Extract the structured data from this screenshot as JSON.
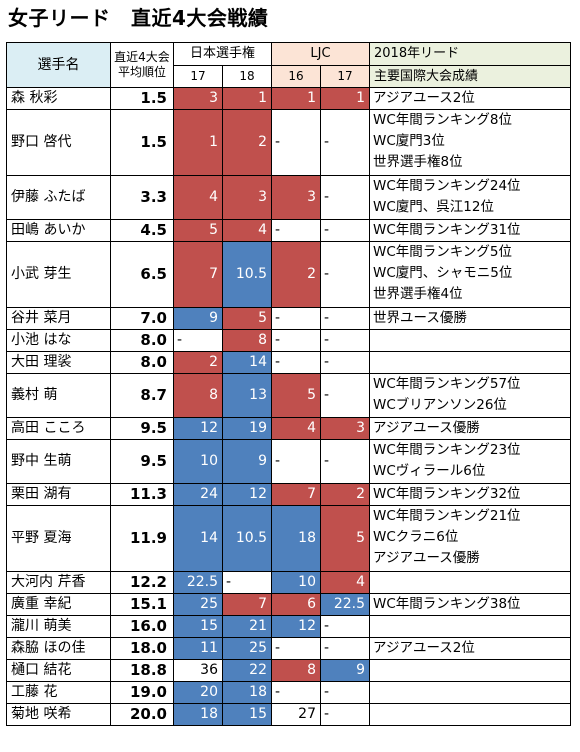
{
  "title": "女子リード　直近4大会戦績",
  "headers": {
    "name": "選手名",
    "avg_line1": "直近4大会",
    "avg_line2": "平均順位",
    "japan": "日本選手権",
    "ljc": "LJC",
    "result_line1": "2018年リード",
    "result_line2": "主要国際大会成績",
    "years": [
      "17",
      "18",
      "16",
      "17"
    ]
  },
  "colors": {
    "red": "#c0504d",
    "blue": "#4f81bd",
    "header_blue": "#dbeef4",
    "header_orange": "#fce4d6",
    "header_green": "#ebf1de"
  },
  "rows": [
    {
      "name": "森 秋彩",
      "avg": "1.5",
      "ranks": [
        {
          "v": "3",
          "c": "red"
        },
        {
          "v": "1",
          "c": "red"
        },
        {
          "v": "1",
          "c": "red"
        },
        {
          "v": "1",
          "c": "red"
        }
      ],
      "results": [
        "アジアユース2位"
      ]
    },
    {
      "name": "野口 啓代",
      "avg": "1.5",
      "ranks": [
        {
          "v": "1",
          "c": "red"
        },
        {
          "v": "2",
          "c": "red"
        },
        {
          "v": "-",
          "c": "dash"
        },
        {
          "v": "-",
          "c": "dash"
        }
      ],
      "results": [
        "WC年間ランキング8位",
        "WC廈門3位",
        "世界選手権8位"
      ]
    },
    {
      "name": "伊藤 ふたば",
      "avg": "3.3",
      "ranks": [
        {
          "v": "4",
          "c": "red"
        },
        {
          "v": "3",
          "c": "red"
        },
        {
          "v": "3",
          "c": "red"
        },
        {
          "v": "-",
          "c": "dash"
        }
      ],
      "results": [
        "WC年間ランキング24位",
        "WC廈門、呉江12位"
      ]
    },
    {
      "name": "田嶋 あいか",
      "avg": "4.5",
      "ranks": [
        {
          "v": "5",
          "c": "red"
        },
        {
          "v": "4",
          "c": "red"
        },
        {
          "v": "-",
          "c": "dash"
        },
        {
          "v": "-",
          "c": "dash"
        }
      ],
      "results": [
        "WC年間ランキング31位"
      ]
    },
    {
      "name": "小武 芽生",
      "avg": "6.5",
      "ranks": [
        {
          "v": "7",
          "c": "red"
        },
        {
          "v": "10.5",
          "c": "blue"
        },
        {
          "v": "2",
          "c": "red"
        },
        {
          "v": "-",
          "c": "dash"
        }
      ],
      "results": [
        "WC年間ランキング5位",
        "WC廈門、シャモニ5位",
        "世界選手権4位"
      ]
    },
    {
      "name": "谷井 菜月",
      "avg": "7.0",
      "ranks": [
        {
          "v": "9",
          "c": "blue"
        },
        {
          "v": "5",
          "c": "red"
        },
        {
          "v": "-",
          "c": "dash"
        },
        {
          "v": "-",
          "c": "dash"
        }
      ],
      "results": [
        "世界ユース優勝"
      ]
    },
    {
      "name": "小池 はな",
      "avg": "8.0",
      "ranks": [
        {
          "v": "-",
          "c": "dash"
        },
        {
          "v": "8",
          "c": "red"
        },
        {
          "v": "-",
          "c": "dash"
        },
        {
          "v": "-",
          "c": "dash"
        }
      ],
      "results": [
        ""
      ]
    },
    {
      "name": "大田 理裟",
      "avg": "8.0",
      "ranks": [
        {
          "v": "2",
          "c": "red"
        },
        {
          "v": "14",
          "c": "blue"
        },
        {
          "v": "-",
          "c": "dash"
        },
        {
          "v": "-",
          "c": "dash"
        }
      ],
      "results": [
        ""
      ]
    },
    {
      "name": "義村 萌",
      "avg": "8.7",
      "ranks": [
        {
          "v": "8",
          "c": "red"
        },
        {
          "v": "13",
          "c": "blue"
        },
        {
          "v": "5",
          "c": "red"
        },
        {
          "v": "-",
          "c": "dash"
        }
      ],
      "results": [
        "WC年間ランキング57位",
        "WCブリアンソン26位"
      ]
    },
    {
      "name": "高田 こころ",
      "avg": "9.5",
      "ranks": [
        {
          "v": "12",
          "c": "blue"
        },
        {
          "v": "19",
          "c": "blue"
        },
        {
          "v": "4",
          "c": "red"
        },
        {
          "v": "3",
          "c": "red"
        }
      ],
      "results": [
        "アジアユース優勝"
      ]
    },
    {
      "name": "野中 生萌",
      "avg": "9.5",
      "ranks": [
        {
          "v": "10",
          "c": "blue"
        },
        {
          "v": "9",
          "c": "blue"
        },
        {
          "v": "-",
          "c": "dash"
        },
        {
          "v": "-",
          "c": "dash"
        }
      ],
      "results": [
        "WC年間ランキング23位",
        "WCヴィラール6位"
      ]
    },
    {
      "name": "栗田 湖有",
      "avg": "11.3",
      "ranks": [
        {
          "v": "24",
          "c": "blue"
        },
        {
          "v": "12",
          "c": "blue"
        },
        {
          "v": "7",
          "c": "red"
        },
        {
          "v": "2",
          "c": "red"
        }
      ],
      "results": [
        "WC年間ランキング32位"
      ]
    },
    {
      "name": "平野 夏海",
      "avg": "11.9",
      "ranks": [
        {
          "v": "14",
          "c": "blue"
        },
        {
          "v": "10.5",
          "c": "blue"
        },
        {
          "v": "18",
          "c": "blue"
        },
        {
          "v": "5",
          "c": "red"
        }
      ],
      "results": [
        "WC年間ランキング21位",
        "WCクラニ6位",
        "アジアユース優勝"
      ]
    },
    {
      "name": "大河内 芹香",
      "avg": "12.2",
      "ranks": [
        {
          "v": "22.5",
          "c": "blue"
        },
        {
          "v": "-",
          "c": "dash"
        },
        {
          "v": "10",
          "c": "blue"
        },
        {
          "v": "4",
          "c": "red"
        }
      ],
      "results": [
        ""
      ]
    },
    {
      "name": "廣重 幸紀",
      "avg": "15.1",
      "ranks": [
        {
          "v": "25",
          "c": "blue"
        },
        {
          "v": "7",
          "c": "red"
        },
        {
          "v": "6",
          "c": "red"
        },
        {
          "v": "22.5",
          "c": "blue"
        }
      ],
      "results": [
        "WC年間ランキング38位"
      ]
    },
    {
      "name": "瀧川 萌美",
      "avg": "16.0",
      "ranks": [
        {
          "v": "15",
          "c": "blue"
        },
        {
          "v": "21",
          "c": "blue"
        },
        {
          "v": "12",
          "c": "blue"
        },
        {
          "v": "-",
          "c": "dash"
        }
      ],
      "results": [
        ""
      ]
    },
    {
      "name": "森脇 ほの佳",
      "avg": "18.0",
      "ranks": [
        {
          "v": "11",
          "c": "blue"
        },
        {
          "v": "25",
          "c": "blue"
        },
        {
          "v": "-",
          "c": "dash"
        },
        {
          "v": "-",
          "c": "dash"
        }
      ],
      "results": [
        "アジアユース2位"
      ]
    },
    {
      "name": "樋口 結花",
      "avg": "18.8",
      "ranks": [
        {
          "v": "36",
          "c": "plain"
        },
        {
          "v": "22",
          "c": "blue"
        },
        {
          "v": "8",
          "c": "red"
        },
        {
          "v": "9",
          "c": "blue"
        }
      ],
      "results": [
        ""
      ]
    },
    {
      "name": "工藤 花",
      "avg": "19.0",
      "ranks": [
        {
          "v": "20",
          "c": "blue"
        },
        {
          "v": "18",
          "c": "blue"
        },
        {
          "v": "-",
          "c": "dash"
        },
        {
          "v": "-",
          "c": "dash"
        }
      ],
      "results": [
        ""
      ]
    },
    {
      "name": "菊地 咲希",
      "avg": "20.0",
      "ranks": [
        {
          "v": "18",
          "c": "blue"
        },
        {
          "v": "15",
          "c": "blue"
        },
        {
          "v": "27",
          "c": "plain"
        },
        {
          "v": "-",
          "c": "dash"
        }
      ],
      "results": [
        ""
      ]
    }
  ]
}
